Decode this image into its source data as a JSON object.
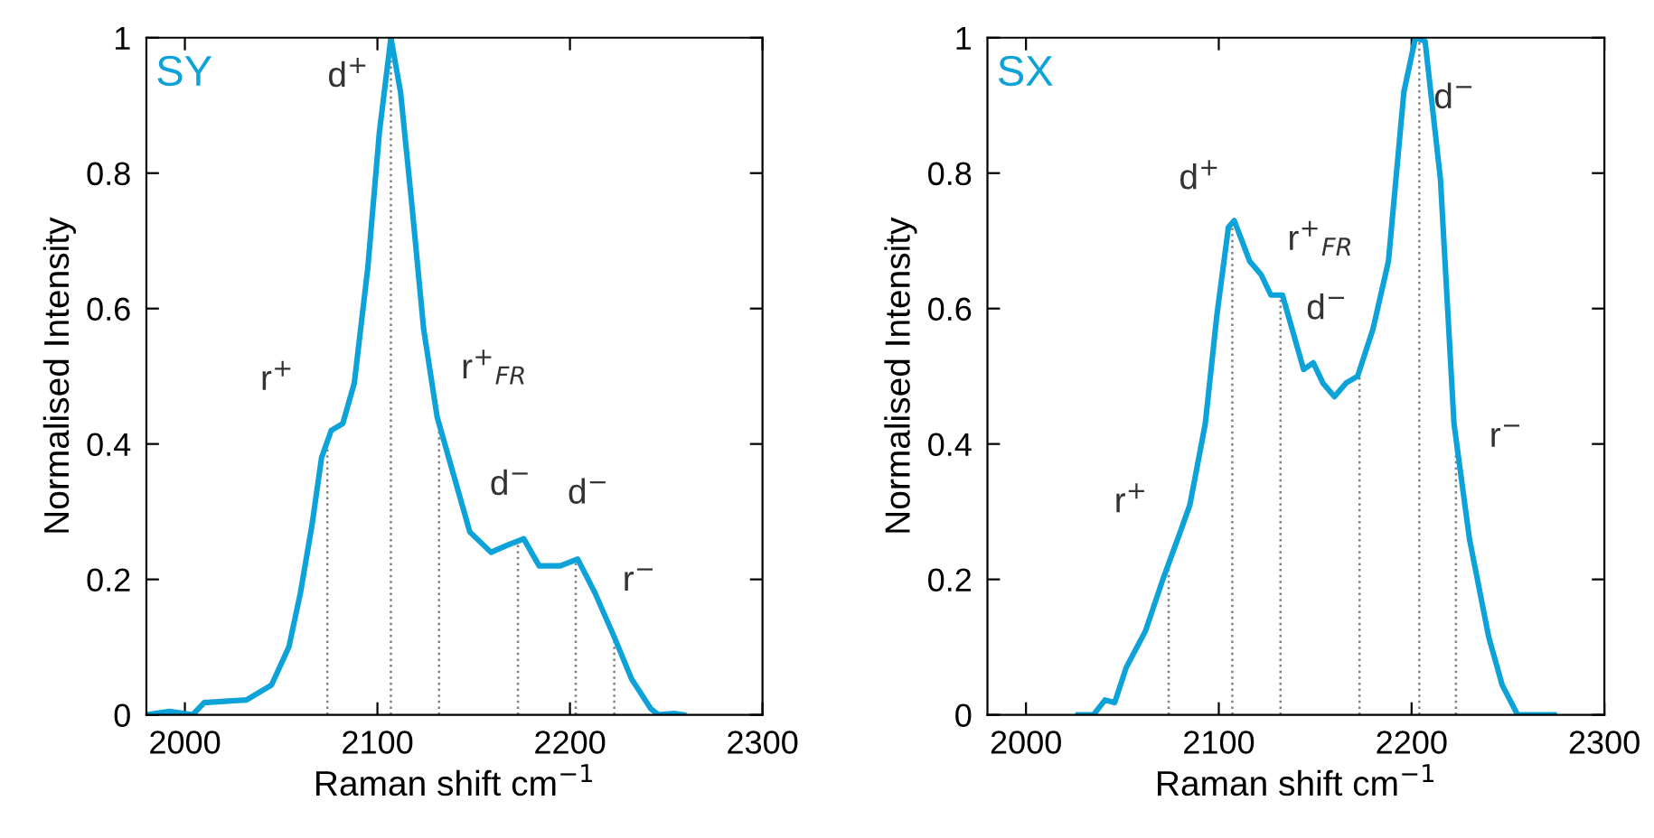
{
  "chart_data": [
    {
      "type": "line",
      "title": "SY",
      "xlabel": "Raman shift cm$^{−1}$",
      "ylabel": "Normalised Intensity",
      "xlim": [
        1980,
        2300
      ],
      "ylim": [
        0,
        1
      ],
      "xticks": [
        2000,
        2100,
        2200,
        2300
      ],
      "yticks": [
        0,
        0.2,
        0.4,
        0.6,
        0.8,
        1
      ],
      "grid": false,
      "marker": "none",
      "line_style": "solid",
      "series": [
        {
          "color": "#0ea3d8",
          "x": [
            1980,
            1992,
            2004,
            2010,
            2032,
            2045,
            2054,
            2060,
            2066,
            2071,
            2076,
            2082,
            2088,
            2095,
            2101,
            2107,
            2112,
            2118,
            2124,
            2131,
            2140,
            2148,
            2159,
            2167,
            2176,
            2184,
            2195,
            2204,
            2213,
            2223,
            2232,
            2242,
            2246,
            2254,
            2259
          ],
          "values": [
            0,
            0.005,
            0,
            0.018,
            0.022,
            0.044,
            0.1,
            0.18,
            0.28,
            0.38,
            0.42,
            0.43,
            0.49,
            0.66,
            0.86,
            1.0,
            0.92,
            0.75,
            0.57,
            0.44,
            0.35,
            0.27,
            0.24,
            0.25,
            0.26,
            0.22,
            0.22,
            0.23,
            0.18,
            0.115,
            0.053,
            0.009,
            0,
            0.002,
            0
          ]
        }
      ],
      "ref_lines": [
        {
          "axis": "x",
          "value": 2074,
          "label": "r$^{+}$",
          "color": "#808080",
          "line_style": "dotted"
        },
        {
          "axis": "x",
          "value": 2107,
          "label": "d$^{+}$",
          "color": "#808080",
          "line_style": "dotted"
        },
        {
          "axis": "x",
          "value": 2132,
          "label": "r$^{+}$$_{FR}$",
          "color": "#808080",
          "line_style": "dotted"
        },
        {
          "axis": "x",
          "value": 2173,
          "label": "d$^{−}$",
          "color": "#808080",
          "line_style": "dotted"
        },
        {
          "axis": "x",
          "value": 2203,
          "label": "d$^{−}$",
          "color": "#808080",
          "line_style": "dotted"
        },
        {
          "axis": "x",
          "value": 2223,
          "label": "r$^{−}$",
          "color": "#808080",
          "line_style": "dotted"
        }
      ]
    },
    {
      "type": "line",
      "title": "SX",
      "xlabel": "Raman shift cm$^{−1}$",
      "ylabel": "Normalised Intensity",
      "xlim": [
        1980,
        2300
      ],
      "ylim": [
        0,
        1
      ],
      "xticks": [
        2000,
        2100,
        2200,
        2300
      ],
      "yticks": [
        0,
        0.2,
        0.4,
        0.6,
        0.8,
        1
      ],
      "grid": false,
      "marker": "none",
      "line_style": "solid",
      "series": [
        {
          "color": "#0ea3d8",
          "x": [
            2027,
            2035,
            2041,
            2046,
            2052,
            2062,
            2071,
            2080,
            2085,
            2093,
            2099,
            2105,
            2108,
            2116,
            2122,
            2127,
            2133,
            2138,
            2144,
            2149,
            2154,
            2160,
            2166,
            2172,
            2180,
            2188,
            2196,
            2202,
            2207,
            2215,
            2222,
            2230,
            2240,
            2247,
            2255,
            2274
          ],
          "values": [
            0,
            0,
            0.022,
            0.018,
            0.07,
            0.124,
            0.2,
            0.27,
            0.31,
            0.43,
            0.59,
            0.72,
            0.73,
            0.67,
            0.65,
            0.62,
            0.62,
            0.57,
            0.51,
            0.52,
            0.49,
            0.47,
            0.49,
            0.5,
            0.57,
            0.67,
            0.92,
            1.0,
            0.995,
            0.79,
            0.43,
            0.26,
            0.115,
            0.044,
            0,
            0
          ]
        }
      ],
      "ref_lines": [
        {
          "axis": "x",
          "value": 2074,
          "label": "r$^{+}$",
          "color": "#808080",
          "line_style": "dotted"
        },
        {
          "axis": "x",
          "value": 2107,
          "label": "d$^{+}$",
          "color": "#808080",
          "line_style": "dotted"
        },
        {
          "axis": "x",
          "value": 2132,
          "label": "r$^{+}$$_{FR}$",
          "color": "#808080",
          "line_style": "dotted"
        },
        {
          "axis": "x",
          "value": 2173,
          "label": "d$^{−}$",
          "color": "#808080",
          "line_style": "dotted"
        },
        {
          "axis": "x",
          "value": 2204,
          "label": "d$^{−}$",
          "color": "#808080",
          "line_style": "dotted"
        },
        {
          "axis": "x",
          "value": 2223,
          "label": "r$^{−}$",
          "color": "#808080",
          "line_style": "dotted"
        }
      ]
    }
  ]
}
